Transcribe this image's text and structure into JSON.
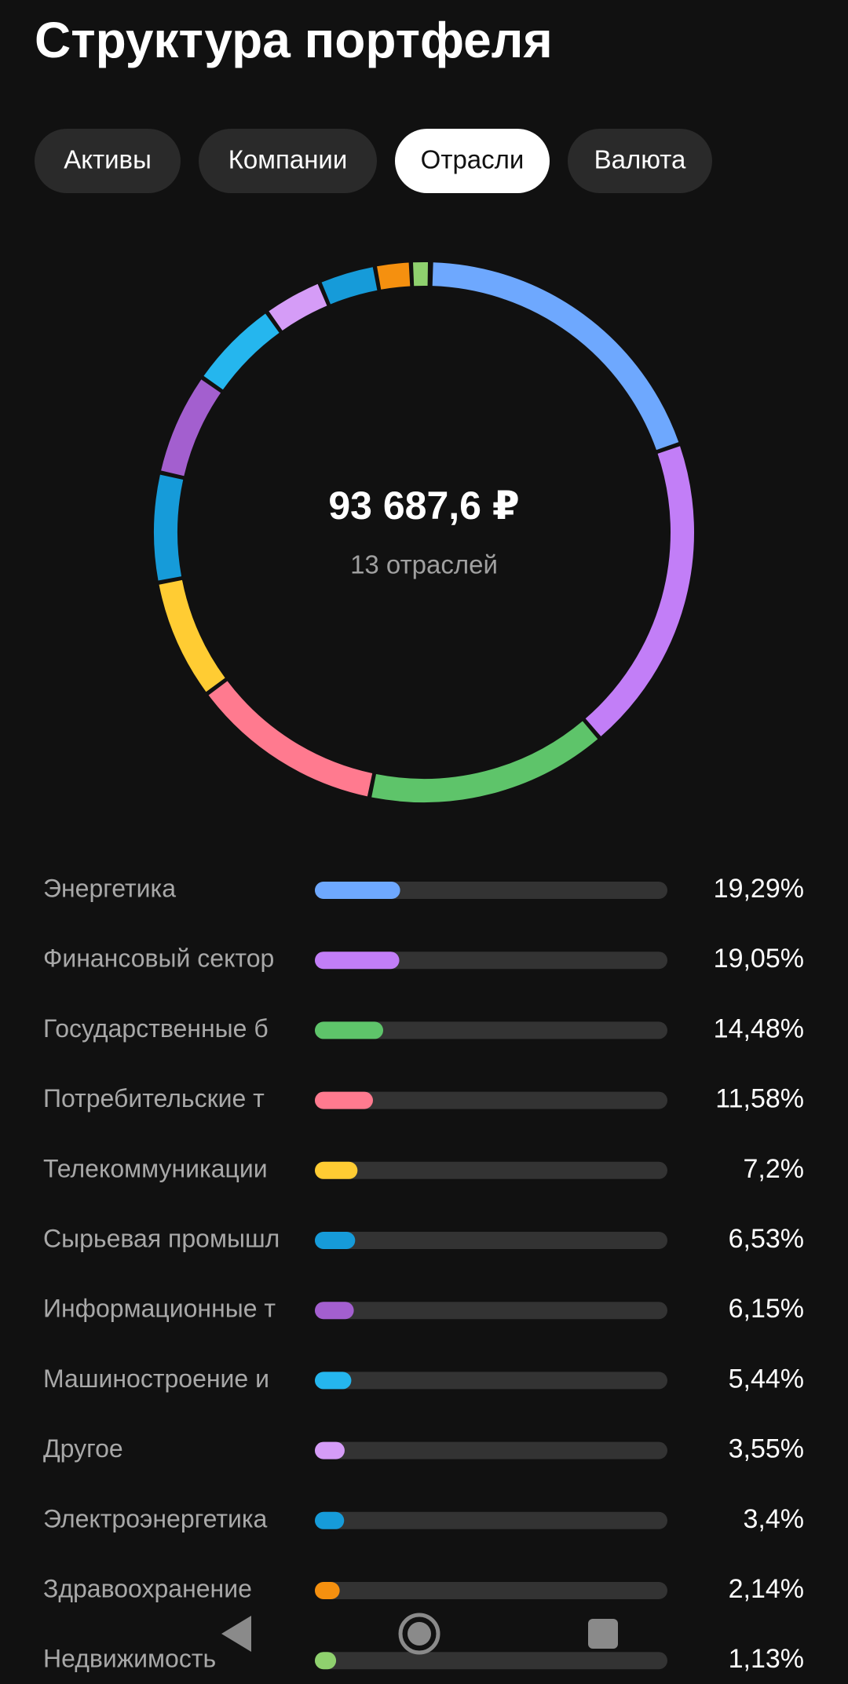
{
  "header": {
    "title": "Структура портфеля"
  },
  "tabs": [
    "Активы",
    "Компании",
    "Отрасли",
    "Валюта"
  ],
  "active_tab": 2,
  "chart_data": {
    "type": "donut",
    "center_title": "93 687,6 ₽",
    "center_subtitle": "13 отраслей",
    "categories": [
      "Энергетика",
      "Финансовый сектор",
      "Государственные б",
      "Потребительские т",
      "Телекоммуникации",
      "Сырьевая промышл",
      "Информационные т",
      "Машиностроение и",
      "Другое",
      "Электроэнергетика",
      "Здравоохранение",
      "Недвижимость"
    ],
    "values": [
      19.29,
      19.05,
      14.48,
      11.58,
      7.2,
      6.53,
      6.15,
      5.44,
      3.55,
      3.4,
      2.14,
      1.13
    ],
    "value_labels": [
      "19,29%",
      "19,05%",
      "14,48%",
      "11,58%",
      "7,2%",
      "6,53%",
      "6,15%",
      "5,44%",
      "3,55%",
      "3,4%",
      "2,14%",
      "1,13%"
    ],
    "colors": [
      "#6ea8fe",
      "#c27ef7",
      "#5ec46a",
      "#ff7a8f",
      "#ffcc33",
      "#169bd9",
      "#a35fcf",
      "#25b6ee",
      "#d59cf7",
      "#169bd9",
      "#f5900f",
      "#8fd16e"
    ]
  }
}
